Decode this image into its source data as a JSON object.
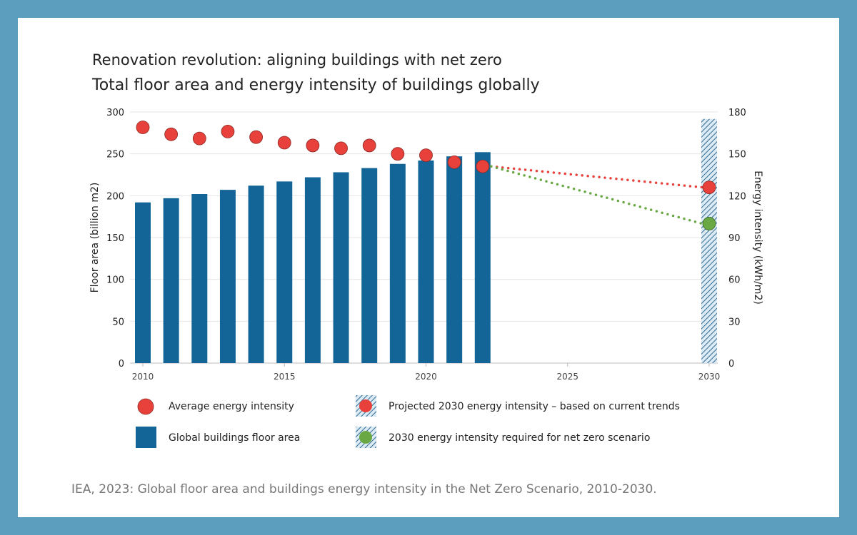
{
  "title": "Renovation revolution: aligning buildings with net zero",
  "subtitle": "Total floor area and energy intensity of buildings globally",
  "source": "IEA, 2023: Global floor area and buildings energy intensity in the Net Zero Scenario, 2010-2030.",
  "colors": {
    "frame": "#5b9ebd",
    "bar": "#136598",
    "red": "#e8403a",
    "green": "#6aa843",
    "hatch": "#1d5d8a"
  },
  "chart_data": {
    "type": "bar",
    "title": "Renovation revolution: aligning buildings with net zero",
    "subtitle": "Total floor area and energy intensity of buildings globally",
    "ylabel": "Floor area (billion m2)",
    "y2label": "Energy intensity (kWh/m2)",
    "xlim": [
      2010,
      2030
    ],
    "ylim": [
      0,
      300
    ],
    "y2lim": [
      0,
      180
    ],
    "x_ticks": [
      2010,
      2015,
      2020,
      2025,
      2030
    ],
    "y_ticks": [
      0,
      50,
      100,
      150,
      200,
      250,
      300
    ],
    "y2_ticks": [
      0,
      30,
      60,
      90,
      120,
      150,
      180
    ],
    "grid": true,
    "legend_position": "bottom",
    "series": [
      {
        "name": "Global buildings floor area",
        "type": "bar",
        "axis": "left",
        "x": [
          2010,
          2011,
          2012,
          2013,
          2014,
          2015,
          2016,
          2017,
          2018,
          2019,
          2020,
          2021,
          2022
        ],
        "values": [
          192,
          197,
          202,
          207,
          212,
          217,
          222,
          228,
          233,
          238,
          242,
          247,
          252
        ]
      },
      {
        "name": "Average energy intensity",
        "type": "scatter",
        "axis": "right",
        "x": [
          2010,
          2011,
          2012,
          2013,
          2014,
          2015,
          2016,
          2017,
          2018,
          2019,
          2020,
          2021,
          2022
        ],
        "values": [
          169,
          164,
          161,
          166,
          162,
          158,
          156,
          154,
          156,
          150,
          149,
          144,
          141
        ]
      },
      {
        "name": "Projected 2030 energy intensity - based on current trends",
        "type": "scatter",
        "axis": "right",
        "x": [
          2030
        ],
        "values": [
          126
        ]
      },
      {
        "name": "2030 energy intensity required for net zero scenario",
        "type": "scatter",
        "axis": "right",
        "x": [
          2030
        ],
        "values": [
          100
        ]
      }
    ],
    "projection_band": {
      "x": 2030,
      "top": 175
    }
  },
  "legend": [
    {
      "label": "Average energy intensity",
      "marker": "red-circle"
    },
    {
      "label": "Global buildings floor area",
      "marker": "blue-square"
    },
    {
      "label": "Projected 2030 energy intensity – based on current trends",
      "marker": "hatched-red-circle"
    },
    {
      "label": "2030 energy intensity required for net zero scenario",
      "marker": "hatched-green-circle"
    }
  ]
}
